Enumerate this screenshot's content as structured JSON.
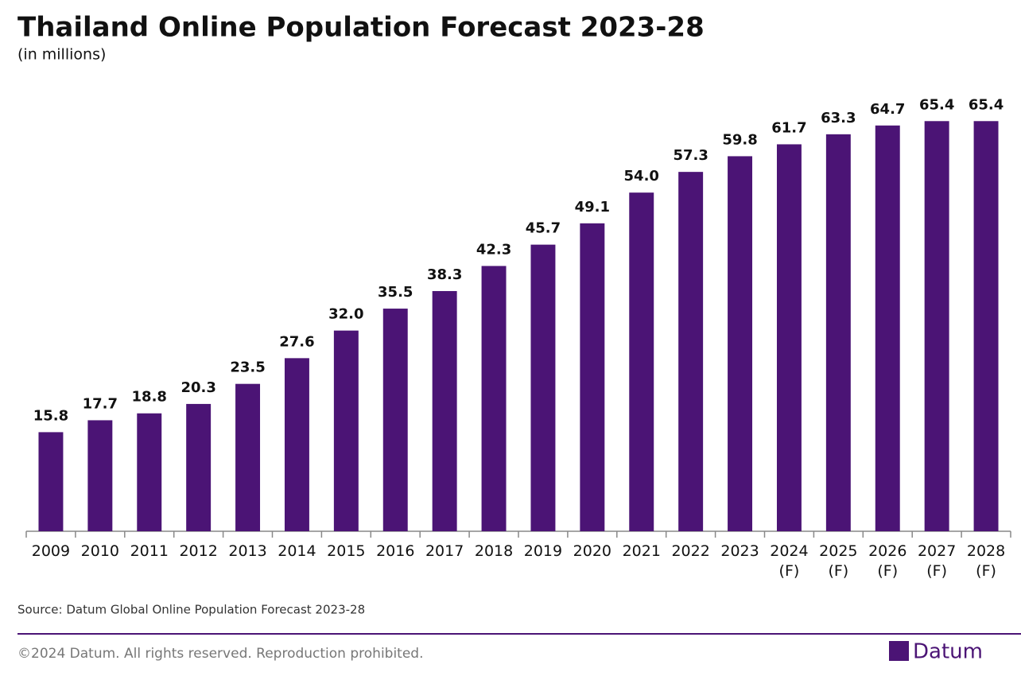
{
  "chart_data": {
    "type": "bar",
    "title": "Thailand Online Population Forecast 2023-28",
    "subtitle": "(in millions)",
    "categories": [
      "2009",
      "2010",
      "2011",
      "2012",
      "2013",
      "2014",
      "2015",
      "2016",
      "2017",
      "2018",
      "2019",
      "2020",
      "2021",
      "2022",
      "2023",
      "2024\n(F)",
      "2025\n(F)",
      "2026\n(F)",
      "2027\n(F)",
      "2028\n(F)"
    ],
    "values": [
      15.8,
      17.7,
      18.8,
      20.3,
      23.5,
      27.6,
      32.0,
      35.5,
      38.3,
      42.3,
      45.7,
      49.1,
      54.0,
      57.3,
      59.8,
      61.7,
      63.3,
      64.7,
      65.4,
      65.4
    ],
    "value_labels": [
      "15.8",
      "17.7",
      "18.8",
      "20.3",
      "23.5",
      "27.6",
      "32.0",
      "35.5",
      "38.3",
      "42.3",
      "45.7",
      "49.1",
      "54.0",
      "57.3",
      "59.8",
      "61.7",
      "63.3",
      "64.7",
      "65.4",
      "65.4"
    ],
    "color": "#4b1475",
    "ylim": [
      0,
      70
    ],
    "source": "Source: Datum Global Online Population Forecast 2023-28",
    "copyright": "©2024 Datum. All rights reserved. Reproduction prohibited.",
    "brand": "Datum"
  }
}
